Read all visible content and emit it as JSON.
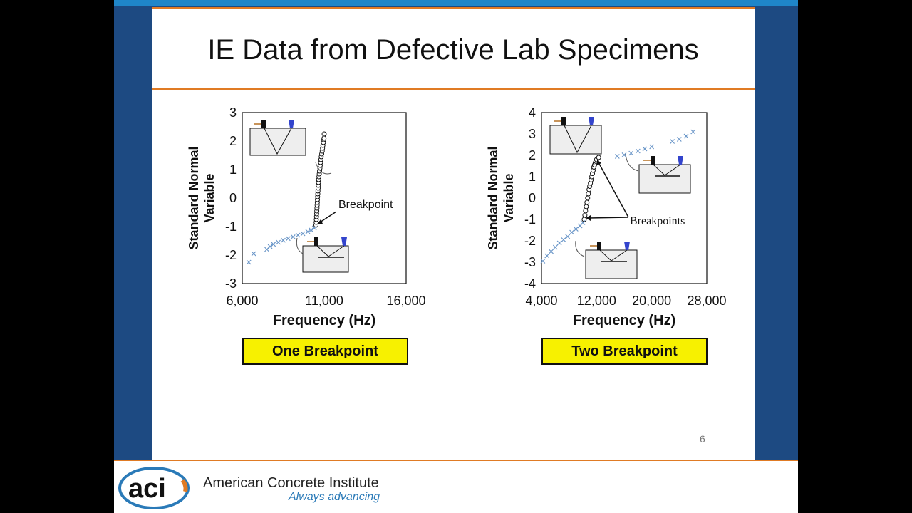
{
  "slide": {
    "title": "IE Data from Defective Lab Specimens",
    "page_number": "6",
    "footer": {
      "org_name": "American Concrete Institute",
      "tagline": "Always advancing",
      "logo_text": "aci"
    },
    "colors": {
      "frame": "#1d4a82",
      "accent": "#e07b24",
      "topbar": "#1f86c9",
      "callout": "#f7f100",
      "series_circle": "#111111",
      "series_cross": "#6a96c8"
    }
  },
  "charts": [
    {
      "callout": "One Breakpoint",
      "annotation": "Breakpoint",
      "chart_data": {
        "type": "scatter",
        "xlabel": "Frequency (Hz)",
        "ylabel": [
          "Standard Normal",
          "Variable"
        ],
        "xlim": [
          6000,
          16000
        ],
        "ylim": [
          -3,
          3
        ],
        "xticks": [
          "6,000",
          "11,000",
          "16,000"
        ],
        "yticks": [
          "3",
          "2",
          "1",
          "0",
          "-1",
          "-2",
          "-3"
        ],
        "series": [
          {
            "marker": "circle",
            "x": [
              10500,
              10510,
              10520,
              10530,
              10540,
              10550,
              10560,
              10570,
              10580,
              10590,
              10600,
              10610,
              10620,
              10630,
              10640,
              10650,
              10660,
              10680,
              10700,
              10720,
              10740,
              10760,
              10780,
              10800,
              10820,
              10850,
              10880,
              10900,
              10920,
              10950,
              10980,
              10990,
              11000
            ],
            "y": [
              -0.95,
              -0.85,
              -0.75,
              -0.65,
              -0.55,
              -0.45,
              -0.35,
              -0.25,
              -0.15,
              -0.05,
              0.05,
              0.15,
              0.25,
              0.35,
              0.45,
              0.55,
              0.65,
              0.75,
              0.85,
              0.95,
              1.05,
              1.15,
              1.25,
              1.35,
              1.45,
              1.55,
              1.65,
              1.75,
              1.85,
              1.95,
              2.05,
              2.1,
              2.25
            ]
          },
          {
            "marker": "cross",
            "x": [
              6400,
              6700,
              7500,
              7700,
              7900,
              8200,
              8500,
              8800,
              9100,
              9400,
              9700,
              10000,
              10200,
              10400
            ],
            "y": [
              -2.25,
              -1.95,
              -1.8,
              -1.7,
              -1.62,
              -1.55,
              -1.48,
              -1.42,
              -1.36,
              -1.3,
              -1.25,
              -1.18,
              -1.12,
              -1.05
            ]
          }
        ]
      }
    },
    {
      "callout": "Two Breakpoint",
      "annotation": "Breakpoints",
      "chart_data": {
        "type": "scatter",
        "xlabel": "Frequency (Hz)",
        "ylabel": [
          "Standard Normal",
          "Variable"
        ],
        "xlim": [
          4000,
          28000
        ],
        "ylim": [
          -4,
          4
        ],
        "xticks": [
          "4,000",
          "12,000",
          "20,000",
          "28,000"
        ],
        "yticks": [
          "4",
          "3",
          "2",
          "1",
          "0",
          "-1",
          "-2",
          "-3",
          "-4"
        ],
        "series": [
          {
            "marker": "circle",
            "x": [
              10200,
              10300,
              10400,
              10500,
              10600,
              10700,
              10800,
              10900,
              11000,
              11100,
              11200,
              11300,
              11400,
              11500,
              11600,
              11700,
              11800,
              11900,
              12000,
              12300
            ],
            "y": [
              -1.0,
              -0.8,
              -0.6,
              -0.4,
              -0.2,
              0.0,
              0.2,
              0.4,
              0.55,
              0.7,
              0.85,
              1.0,
              1.15,
              1.3,
              1.45,
              1.55,
              1.65,
              1.72,
              1.8,
              1.9
            ]
          },
          {
            "marker": "cross",
            "x": [
              4200,
              4800,
              5400,
              6000,
              6600,
              7200,
              7800,
              8400,
              9000,
              9600,
              10000,
              15000,
              16000,
              17000,
              18000,
              19000,
              20000,
              23000,
              24000,
              25000,
              26000
            ],
            "y": [
              -2.95,
              -2.7,
              -2.5,
              -2.3,
              -2.1,
              -1.95,
              -1.8,
              -1.6,
              -1.45,
              -1.3,
              -1.15,
              1.95,
              2.02,
              2.1,
              2.2,
              2.3,
              2.4,
              2.65,
              2.75,
              2.9,
              3.1
            ]
          }
        ]
      }
    }
  ]
}
